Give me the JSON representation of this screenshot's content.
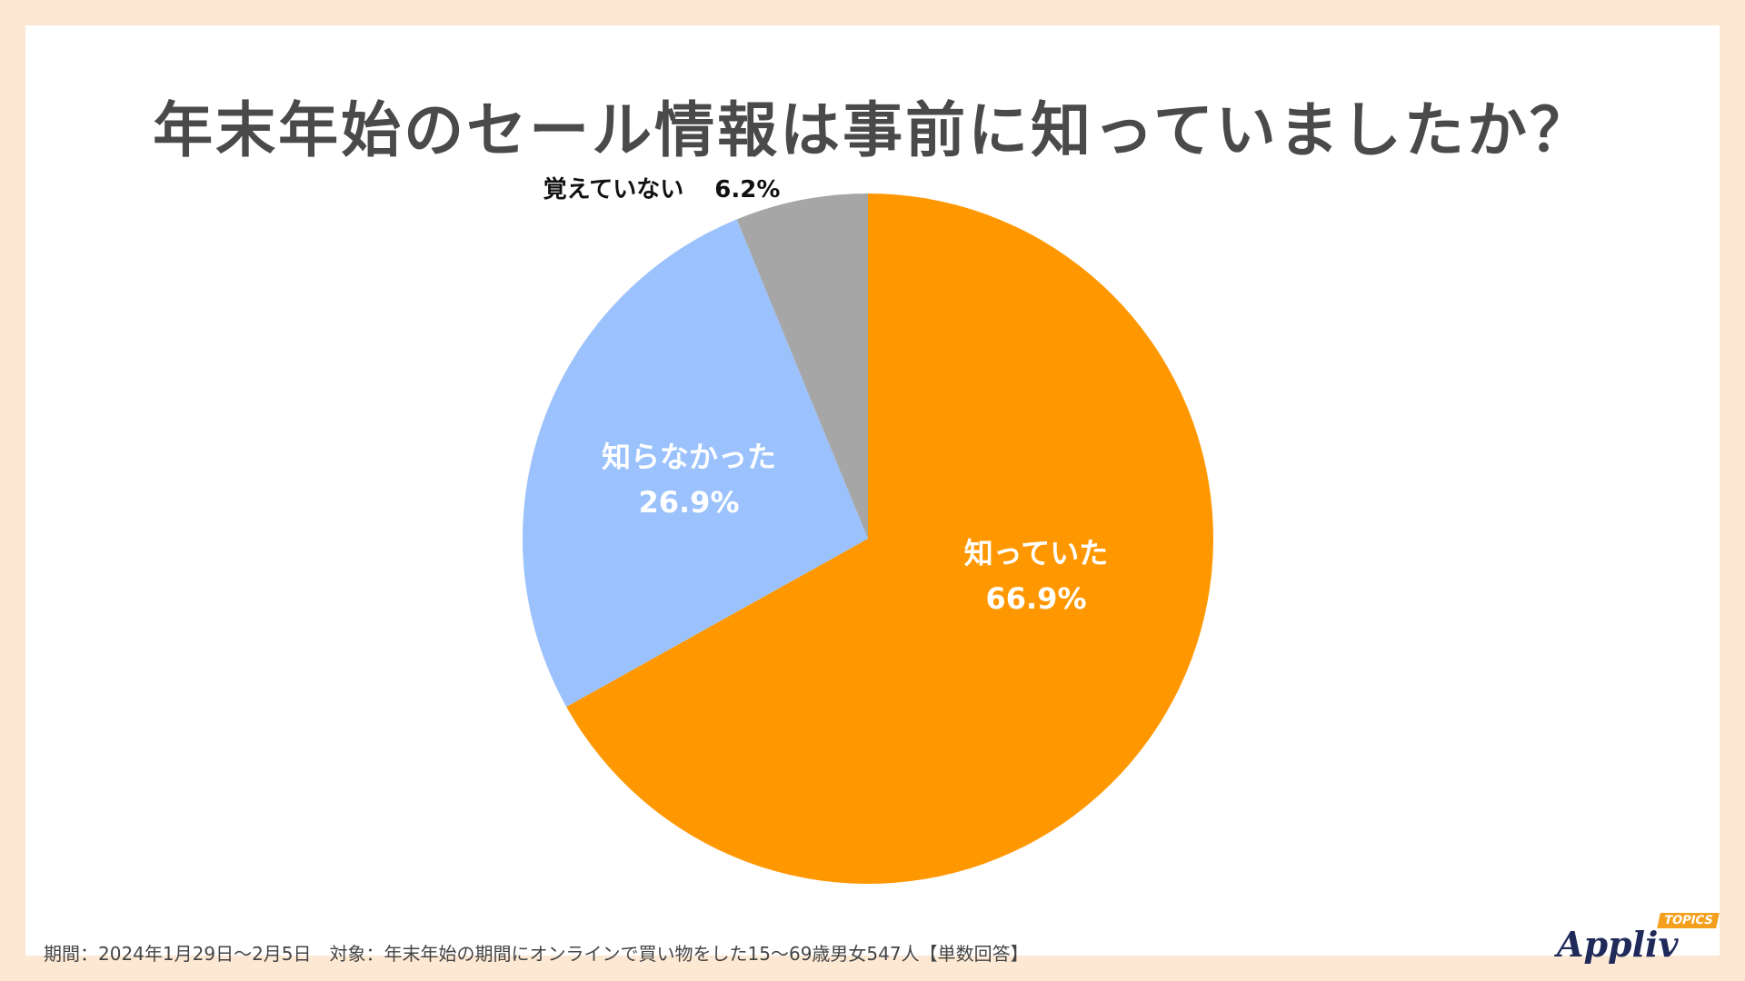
{
  "page": {
    "footer": "期間：2024年1月29日～2月5日　対象：年末年始の期間にオンラインで買い物をした15～69歳男女547人【単数回答】"
  },
  "logo": {
    "word": "Appliv",
    "tag": "TOPICS"
  },
  "chart_data": {
    "type": "pie",
    "title": "年末年始のセール情報は事前に知っていましたか？",
    "slices": [
      {
        "label": "知っていた",
        "value": 66.9,
        "value_label": "66.9%",
        "color": "#ff9800",
        "label_color": "#ffffff"
      },
      {
        "label": "知らなかった",
        "value": 26.9,
        "value_label": "26.9%",
        "color": "#9bc2fd",
        "label_color": "#ffffff"
      },
      {
        "label": "覚えていない",
        "value": 6.2,
        "value_label": "6.2%",
        "color": "#a6a6a6",
        "label_color": "#111111"
      }
    ]
  }
}
